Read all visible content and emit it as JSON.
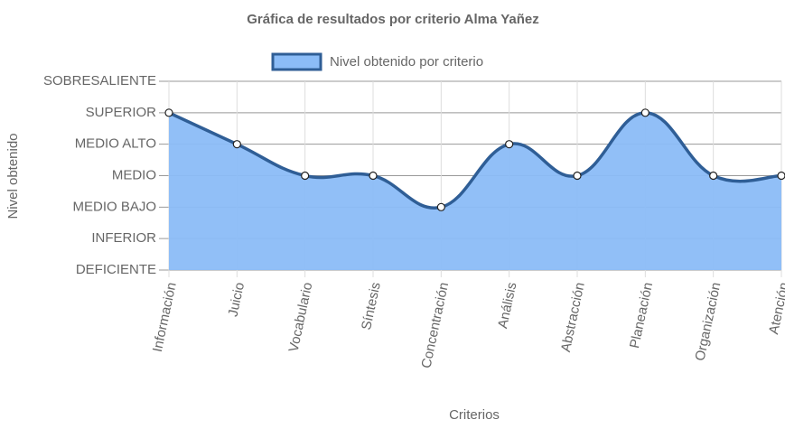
{
  "chart_data": {
    "type": "line",
    "title": "Gráfica de resultados por criterio Alma Yañez",
    "x_label": "Criterios",
    "y_label": "Nivel obtenido",
    "categories": [
      "Información",
      "Juicio",
      "Vocabulario",
      "Síntesis",
      "Concentración",
      "Análisis",
      "Abstracción",
      "Planeación",
      "Organización",
      "Atención"
    ],
    "series": [
      {
        "name": "Nivel obtenido por criterio",
        "color": "#2f5e96",
        "fill": "#8bbcf7",
        "values": [
          6,
          5,
          4,
          4,
          3,
          5,
          4,
          6,
          4,
          4
        ]
      }
    ],
    "ylim": [
      1,
      7
    ],
    "yticks": [
      {
        "value": 1,
        "label": "DEFICIENTE"
      },
      {
        "value": 2,
        "label": "INFERIOR"
      },
      {
        "value": 3,
        "label": "MEDIO BAJO"
      },
      {
        "value": 4,
        "label": "MEDIO"
      },
      {
        "value": 5,
        "label": "MEDIO ALTO"
      },
      {
        "value": 6,
        "label": "SUPERIOR"
      },
      {
        "value": 7,
        "label": "SOBRESALIENTE"
      }
    ],
    "grid": true,
    "legend": "top"
  }
}
